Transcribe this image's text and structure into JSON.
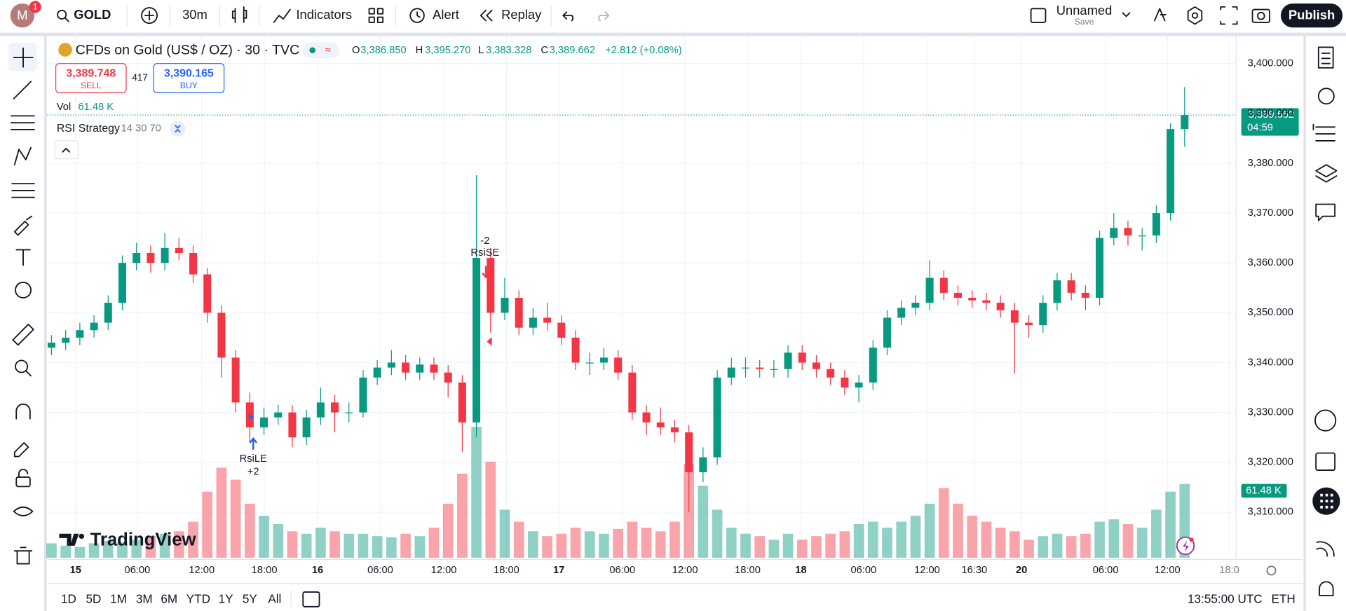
{
  "toolbar": {
    "notification_count": "1",
    "symbol": "GOLD",
    "interval": "30m",
    "indicators": "Indicators",
    "alert": "Alert",
    "replay": "Replay",
    "layout_name": "Unnamed",
    "save": "Save",
    "publish": "Publish"
  },
  "legend": {
    "title": "CFDs on Gold (US$ / OZ) · 30 · TVC",
    "open_label": "O",
    "open": "3,386.850",
    "high_label": "H",
    "high": "3,395.270",
    "low_label": "L",
    "low": "3,383.328",
    "close_label": "C",
    "close": "3,389.662",
    "change": "+2.812 (+0.08%)",
    "sell_price": "3,389.748",
    "sell": "SELL",
    "spread": "417",
    "buy_price": "3,390.165",
    "buy": "BUY",
    "volume_label": "Vol",
    "volume": "61.48 K",
    "study": "RSI Strategy",
    "study_params": "14 30 70"
  },
  "chart_data": {
    "type": "candlestick",
    "up_color": "#089981",
    "down_color": "#f23645",
    "grid": true,
    "ylim": [
      3300.5,
      3405.85
    ],
    "yticks": [
      {
        "value": 3310,
        "label": "3,310.000"
      },
      {
        "value": 3320,
        "label": "3,320.000"
      },
      {
        "value": 3330,
        "label": "3,330.000"
      },
      {
        "value": 3340,
        "label": "3,340.000"
      },
      {
        "value": 3350,
        "label": "3,350.000"
      },
      {
        "value": 3360,
        "label": "3,360.000"
      },
      {
        "value": 3370,
        "label": "3,370.000"
      },
      {
        "value": 3380,
        "label": "3,380.000"
      },
      {
        "value": 3390,
        "label": "3,390.000"
      },
      {
        "value": 3400,
        "label": "3,400.000"
      }
    ],
    "xticks": [
      "15",
      "06:00",
      "12:00",
      "18:00",
      "16",
      "06:00",
      "12:00",
      "18:00",
      "17",
      "06:00",
      "12:00",
      "18:00",
      "18",
      "06:00",
      "12:00",
      "16:30",
      "20",
      "06:00",
      "12:00",
      "18:0"
    ],
    "candles": [
      [
        3343,
        3345.5,
        3341.5,
        3344
      ],
      [
        3344,
        3346.5,
        3342.5,
        3345
      ],
      [
        3345,
        3348,
        3343.5,
        3346.5
      ],
      [
        3346.5,
        3349.5,
        3345,
        3348
      ],
      [
        3348,
        3353.5,
        3346.5,
        3352
      ],
      [
        3352,
        3361.5,
        3350.5,
        3360
      ],
      [
        3360,
        3364,
        3358.5,
        3362
      ],
      [
        3362,
        3363.5,
        3358,
        3360
      ],
      [
        3360,
        3366,
        3358.5,
        3363
      ],
      [
        3363,
        3365,
        3360.5,
        3362
      ],
      [
        3362,
        3363.5,
        3356,
        3357.7
      ],
      [
        3357.7,
        3359,
        3348,
        3350
      ],
      [
        3350,
        3351.5,
        3337,
        3341
      ],
      [
        3341,
        3342.5,
        3330,
        3332
      ],
      [
        3332,
        3334,
        3324,
        3327
      ],
      [
        3327,
        3331,
        3325.5,
        3329
      ],
      [
        3329,
        3331.5,
        3327.5,
        3330
      ],
      [
        3330,
        3331.5,
        3323,
        3325
      ],
      [
        3325,
        3330.5,
        3323.5,
        3329
      ],
      [
        3329,
        3335,
        3327.5,
        3332
      ],
      [
        3332,
        3333.5,
        3326,
        3330
      ],
      [
        3330,
        3332,
        3328,
        3330
      ],
      [
        3330,
        3338.5,
        3329,
        3337
      ],
      [
        3337,
        3340.5,
        3335.5,
        3339
      ],
      [
        3339,
        3342.5,
        3337.5,
        3340
      ],
      [
        3340,
        3341.5,
        3336.5,
        3338
      ],
      [
        3338,
        3341,
        3336.5,
        3339.6
      ],
      [
        3339.6,
        3341,
        3336.5,
        3338
      ],
      [
        3338,
        3339.5,
        3333,
        3336
      ],
      [
        3336,
        3337.5,
        3322,
        3328
      ],
      [
        3328,
        3377.6,
        3325,
        3361
      ],
      [
        3361,
        3363,
        3346,
        3350
      ],
      [
        3350,
        3357,
        3348.5,
        3353
      ],
      [
        3353,
        3354.5,
        3345.5,
        3347
      ],
      [
        3347,
        3351,
        3345.5,
        3349
      ],
      [
        3349,
        3352,
        3346.5,
        3348
      ],
      [
        3348,
        3349.5,
        3343.5,
        3345
      ],
      [
        3345,
        3346.5,
        3338.5,
        3340
      ],
      [
        3340,
        3342,
        3337.5,
        3340
      ],
      [
        3340,
        3343,
        3338.5,
        3341
      ],
      [
        3341,
        3342.5,
        3336.5,
        3338
      ],
      [
        3338,
        3339.5,
        3328.5,
        3330
      ],
      [
        3330,
        3331.5,
        3325.5,
        3328
      ],
      [
        3328,
        3331,
        3325.5,
        3327
      ],
      [
        3327,
        3328.5,
        3324,
        3326
      ],
      [
        3326,
        3327.5,
        3310,
        3318
      ],
      [
        3318,
        3323,
        3316,
        3321
      ],
      [
        3321,
        3338.5,
        3319.5,
        3337
      ],
      [
        3337,
        3341,
        3335.5,
        3339
      ],
      [
        3339,
        3341,
        3337,
        3339
      ],
      [
        3339,
        3340.5,
        3337,
        3338.7
      ],
      [
        3338.7,
        3340.5,
        3337,
        3338.7
      ],
      [
        3338.7,
        3343.5,
        3337,
        3342
      ],
      [
        3342,
        3343.5,
        3338.5,
        3340
      ],
      [
        3340,
        3341.5,
        3337,
        3338.7
      ],
      [
        3338.7,
        3340,
        3335.5,
        3337
      ],
      [
        3337,
        3338.5,
        3333.5,
        3335
      ],
      [
        3335,
        3337.5,
        3332,
        3336
      ],
      [
        3336,
        3344.5,
        3334.5,
        3343
      ],
      [
        3343,
        3350.5,
        3341.5,
        3349
      ],
      [
        3349,
        3352.5,
        3347.5,
        3351
      ],
      [
        3351,
        3353.5,
        3349.5,
        3352
      ],
      [
        3352,
        3360.5,
        3350.5,
        3357
      ],
      [
        3357,
        3358.5,
        3352.5,
        3354
      ],
      [
        3354,
        3355.5,
        3351.5,
        3353
      ],
      [
        3353,
        3354.5,
        3351,
        3352.5
      ],
      [
        3352.5,
        3354,
        3350.5,
        3352
      ],
      [
        3352,
        3353.5,
        3349,
        3350.5
      ],
      [
        3350.5,
        3352,
        3337.8,
        3348
      ],
      [
        3348,
        3349.5,
        3345,
        3347.5
      ],
      [
        3347.5,
        3353.5,
        3346,
        3352
      ],
      [
        3352,
        3358,
        3350.5,
        3356.5
      ],
      [
        3356.5,
        3358,
        3352.5,
        3354
      ],
      [
        3354,
        3355.5,
        3350.5,
        3353
      ],
      [
        3353,
        3366.5,
        3351.5,
        3365
      ],
      [
        3365,
        3370,
        3363.5,
        3367
      ],
      [
        3367,
        3368.5,
        3363.5,
        3365.5
      ],
      [
        3365.5,
        3367,
        3362.5,
        3365.5
      ],
      [
        3365.5,
        3371.5,
        3364,
        3370
      ],
      [
        3370,
        3388,
        3368.5,
        3386.85
      ],
      [
        3386.85,
        3395.27,
        3383.328,
        3389.662
      ]
    ],
    "volume": [
      12,
      10,
      9,
      12,
      14,
      13,
      15,
      18,
      20,
      22,
      30,
      55,
      75,
      65,
      45,
      35,
      28,
      22,
      20,
      25,
      22,
      20,
      20,
      18,
      17,
      20,
      18,
      25,
      45,
      70,
      109,
      80,
      40,
      30,
      22,
      18,
      20,
      25,
      22,
      20,
      24,
      30,
      25,
      22,
      30,
      78,
      60,
      40,
      25,
      20,
      18,
      15,
      20,
      15,
      18,
      20,
      22,
      28,
      30,
      25,
      30,
      35,
      45,
      58,
      45,
      35,
      30,
      25,
      22,
      15,
      18,
      20,
      18,
      20,
      30,
      32,
      28,
      25,
      40,
      55,
      61.48
    ],
    "last_price_label": "3,389.662",
    "countdown": "04:59",
    "last_volume_label": "61.48 K",
    "signals": [
      {
        "qty": "-2",
        "label": "RsiSE"
      },
      {
        "label": "RsiLE",
        "qty": "+2"
      }
    ],
    "watermark": "TradingView"
  },
  "bottom_bar": {
    "ranges": [
      "1D",
      "5D",
      "1M",
      "3M",
      "6M",
      "YTD",
      "1Y",
      "5Y",
      "All"
    ],
    "clock": "13:55:00 UTC",
    "session": "ETH"
  }
}
